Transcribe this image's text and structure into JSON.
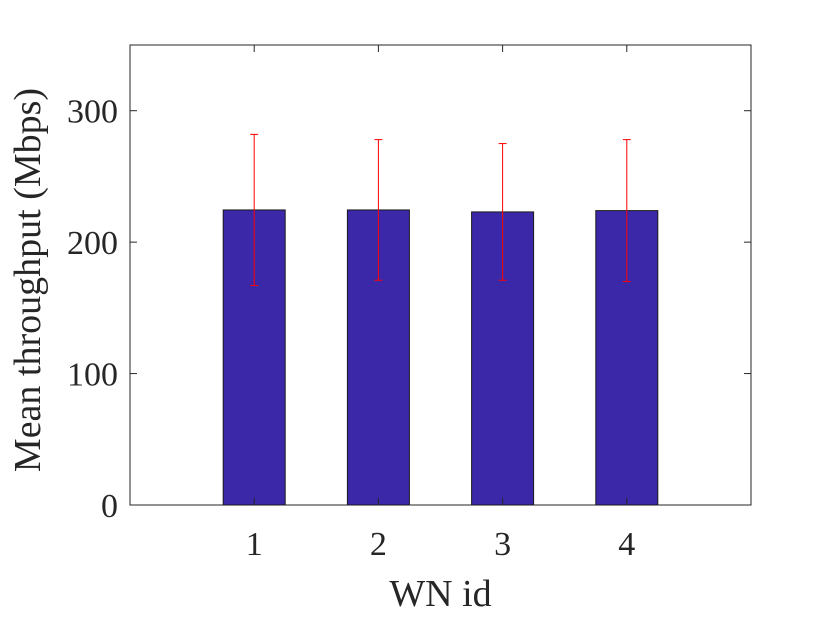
{
  "chart_data": {
    "type": "bar",
    "categories": [
      "1",
      "2",
      "3",
      "4"
    ],
    "values": [
      224.5,
      224.5,
      223.0,
      224.0
    ],
    "error_bars": [
      {
        "low": 167,
        "high": 282
      },
      {
        "low": 171,
        "high": 278
      },
      {
        "low": 171,
        "high": 275
      },
      {
        "low": 170,
        "high": 278
      }
    ],
    "xlabel": "WN id",
    "ylabel": "Mean throughput (Mbps)",
    "ylim": [
      0,
      350
    ],
    "xlim": [
      0,
      5
    ],
    "yticks": [
      0,
      100,
      200,
      300
    ],
    "grid": false,
    "colors": {
      "bar_fill": "#3b28a8",
      "bar_edge": "#1a1a1a",
      "error_bar": "#ff0000",
      "axis": "#262626"
    }
  }
}
